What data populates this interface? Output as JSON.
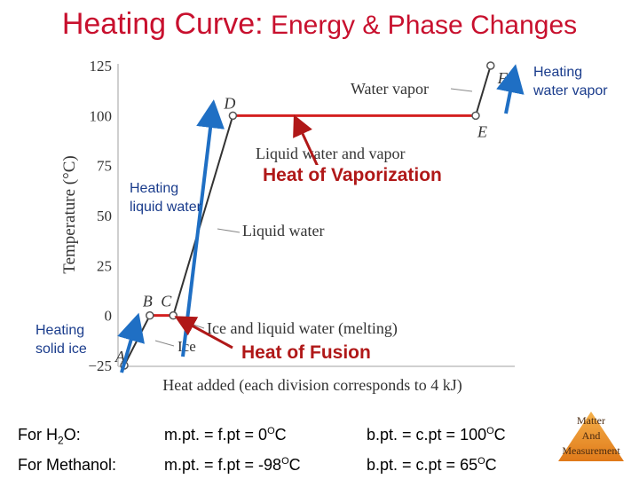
{
  "title": {
    "main": "Heating Curve:",
    "sub": " Energy & Phase Changes"
  },
  "chart_data": {
    "type": "line",
    "ylabel": "Temperature (°C)",
    "xlabel": "Heat added (each division corresponds to 4 kJ)",
    "ylim": [
      -25,
      125
    ],
    "yticks": [
      -25,
      0,
      25,
      50,
      75,
      100,
      125
    ],
    "points": [
      {
        "label": "A",
        "x": 0,
        "y": -25
      },
      {
        "label": "B",
        "x": 1.2,
        "y": 0
      },
      {
        "label": "C",
        "x": 2.3,
        "y": 0
      },
      {
        "label": "D",
        "x": 5.1,
        "y": 100
      },
      {
        "label": "E",
        "x": 16.5,
        "y": 100
      },
      {
        "label": "F",
        "x": 17.2,
        "y": 125
      }
    ],
    "segments": [
      {
        "label": "Ice",
        "from": "A",
        "to": "B"
      },
      {
        "label": "Ice and liquid water (melting)",
        "from": "B",
        "to": "C"
      },
      {
        "label": "Liquid water",
        "from": "C",
        "to": "D"
      },
      {
        "label": "Liquid water and vapor",
        "from": "D",
        "to": "E"
      },
      {
        "label": "Water vapor",
        "from": "E",
        "to": "F"
      }
    ],
    "callouts": {
      "heating_ice": "Heating solid ice",
      "heating_liquid": "Heating liquid water",
      "heating_vapor": "Heating water vapor",
      "vaporization": "Heat of Vaporization",
      "fusion": "Heat of Fusion"
    },
    "colors": {
      "plateau": "#d42020",
      "arrow_blue": "#1f6fc4",
      "arrow_red": "#b01818",
      "curve": "#333333"
    }
  },
  "footer": {
    "row1": {
      "label": "For H",
      "sub": "2",
      "label_end": "O:",
      "mp": "m.pt. = f.pt = 0",
      "mp_sup": "O",
      "mp_unit": "C",
      "bp": "b.pt. = c.pt = 100",
      "bp_sup": "O",
      "bp_unit": "C"
    },
    "row2": {
      "label": "For Methanol:",
      "mp": "m.pt. = f.pt = -98",
      "mp_sup": "O",
      "mp_unit": "C",
      "bp": "b.pt. = c.pt = 65",
      "bp_sup": "O",
      "bp_unit": "C"
    }
  },
  "badge": {
    "line1": "Matter",
    "line2": "And",
    "line3": "Measurement"
  }
}
